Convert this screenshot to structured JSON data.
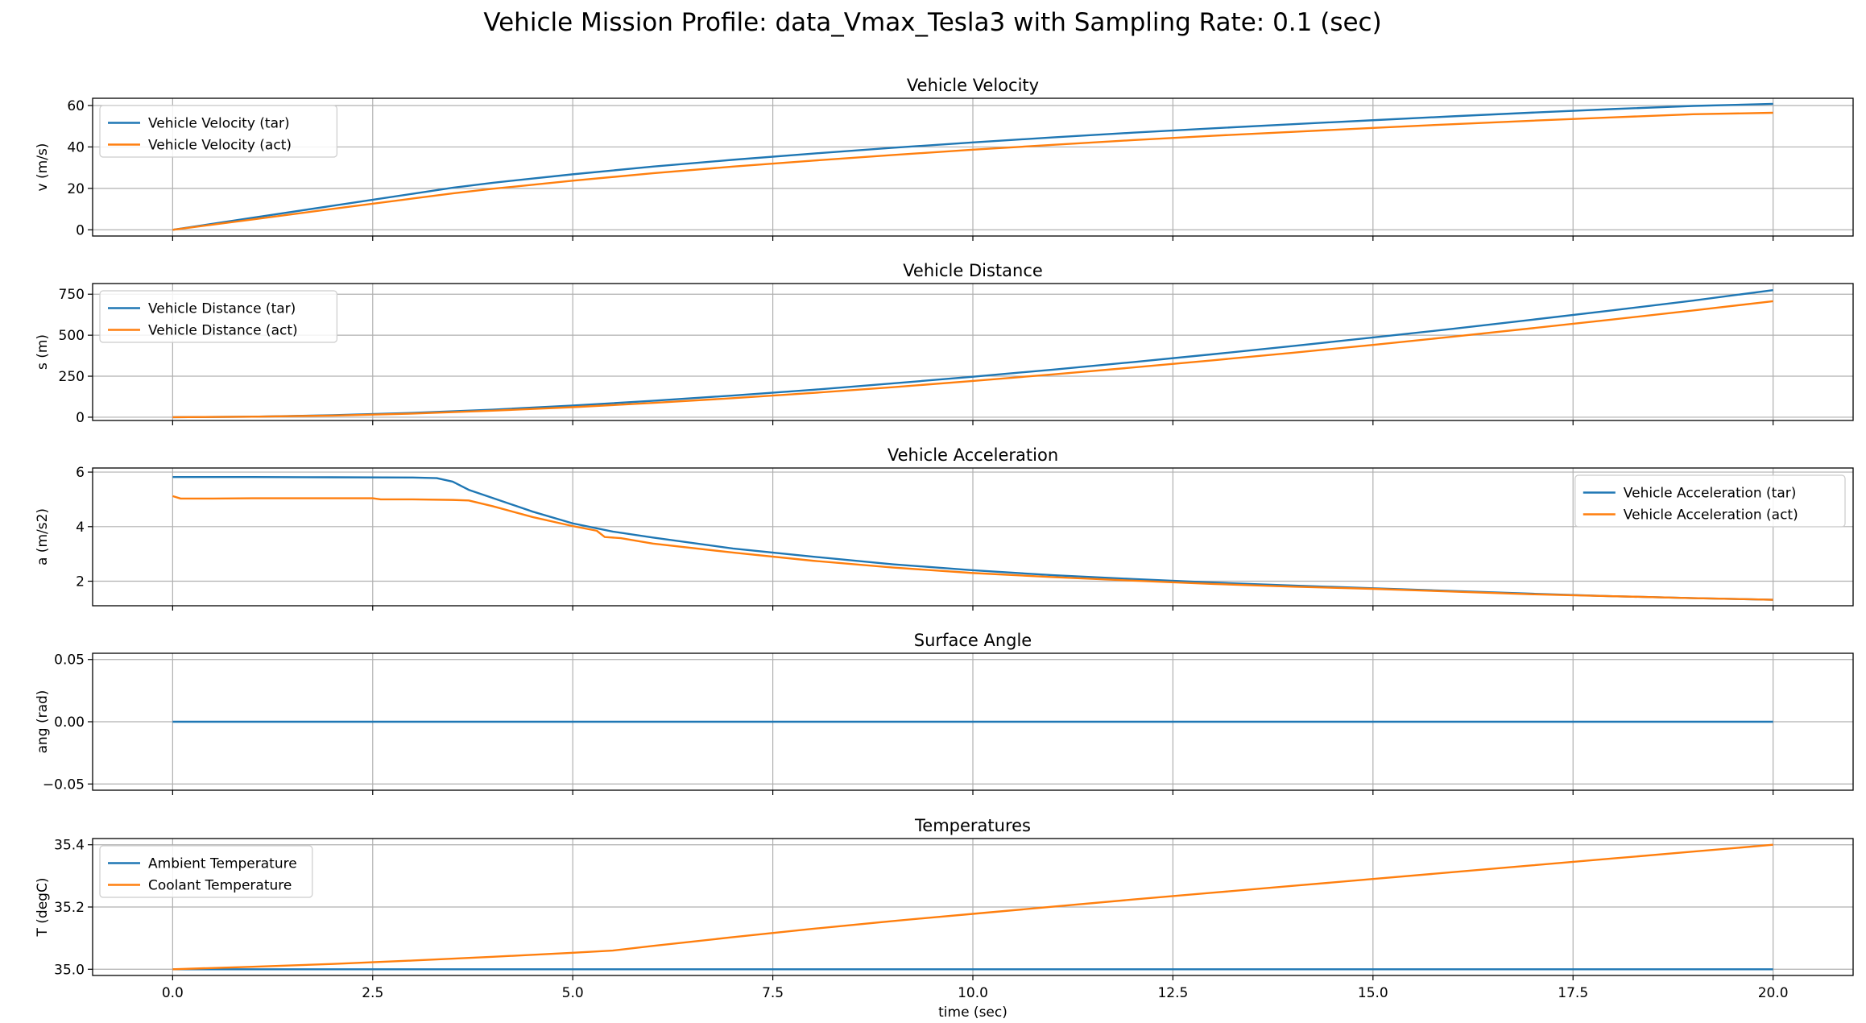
{
  "figure": {
    "title": "Vehicle Mission Profile: data_Vmax_Tesla3 with Sampling Rate: 0.1 (sec)",
    "xlabel": "time (sec)"
  },
  "colors": {
    "tar": "#1f77b4",
    "act": "#ff7f0e",
    "grid": "#b0b0b0"
  },
  "chart_data": [
    {
      "type": "line",
      "title": "Vehicle Velocity",
      "ylabel": "v (m/s)",
      "xlim": [
        -1,
        21
      ],
      "ylim": [
        -3.0,
        63.5
      ],
      "yticks": [
        0,
        20,
        40,
        60
      ],
      "ytick_labels": [
        "0",
        "20",
        "40",
        "60"
      ],
      "legend": "upper-left",
      "series": [
        {
          "name": "Vehicle Velocity (tar)",
          "x": [
            0,
            1,
            2,
            3,
            3.5,
            4,
            5,
            6,
            7,
            8,
            9,
            10,
            11,
            12,
            13,
            14,
            15,
            16,
            17,
            18,
            19,
            20
          ],
          "y": [
            0,
            5.8,
            11.6,
            17.4,
            20.3,
            22.7,
            26.8,
            30.5,
            33.8,
            36.8,
            39.6,
            42.2,
            44.6,
            46.9,
            49.0,
            51.0,
            52.9,
            54.8,
            56.6,
            58.3,
            59.8,
            60.8
          ]
        },
        {
          "name": "Vehicle Velocity (act)",
          "x": [
            0,
            1,
            2,
            3,
            3.5,
            4,
            5,
            6,
            7,
            8,
            9,
            10,
            11,
            12,
            13,
            14,
            15,
            16,
            17,
            18,
            19,
            20
          ],
          "y": [
            0,
            5.0,
            10.1,
            15.1,
            17.6,
            19.8,
            23.7,
            27.3,
            30.5,
            33.4,
            36.1,
            38.7,
            41.0,
            43.3,
            45.4,
            47.3,
            49.2,
            51.0,
            52.7,
            54.3,
            55.8,
            56.5
          ]
        }
      ]
    },
    {
      "type": "line",
      "title": "Vehicle Distance",
      "ylabel": "s (m)",
      "xlim": [
        -1,
        21
      ],
      "ylim": [
        -20,
        815
      ],
      "yticks": [
        0,
        250,
        500,
        750
      ],
      "ytick_labels": [
        "0",
        "250",
        "500",
        "750"
      ],
      "legend": "upper-left",
      "series": [
        {
          "name": "Vehicle Distance (tar)",
          "x": [
            0,
            1,
            2,
            3,
            4,
            5,
            6,
            7,
            8,
            9,
            10,
            11,
            12,
            13,
            14,
            15,
            16,
            17,
            18,
            19,
            20
          ],
          "y": [
            0,
            3,
            12,
            26,
            46,
            71,
            100,
            132,
            167,
            206,
            247,
            290,
            336,
            384,
            434,
            486,
            539,
            595,
            652,
            711,
            775
          ]
        },
        {
          "name": "Vehicle Distance (act)",
          "x": [
            0,
            1,
            2,
            3,
            4,
            5,
            6,
            7,
            8,
            9,
            10,
            11,
            12,
            13,
            14,
            15,
            16,
            17,
            18,
            19,
            20
          ],
          "y": [
            0,
            3,
            10,
            22,
            40,
            61,
            87,
            116,
            148,
            183,
            221,
            261,
            303,
            347,
            393,
            441,
            491,
            543,
            596,
            651,
            707
          ]
        }
      ]
    },
    {
      "type": "line",
      "title": "Vehicle Acceleration",
      "ylabel": "a (m/s2)",
      "xlim": [
        -1,
        21
      ],
      "ylim": [
        1.1,
        6.15
      ],
      "yticks": [
        2,
        4,
        6
      ],
      "ytick_labels": [
        "2",
        "4",
        "6"
      ],
      "legend": "upper-right",
      "series": [
        {
          "name": "Vehicle Acceleration (tar)",
          "x": [
            0,
            1,
            2,
            3,
            3.3,
            3.5,
            3.7,
            4,
            4.5,
            5,
            5.5,
            6,
            7,
            8,
            9,
            10,
            11,
            12,
            13,
            14,
            15,
            16,
            17,
            18,
            19,
            20
          ],
          "y": [
            5.82,
            5.82,
            5.81,
            5.8,
            5.78,
            5.65,
            5.35,
            5.05,
            4.55,
            4.12,
            3.82,
            3.6,
            3.2,
            2.9,
            2.62,
            2.4,
            2.22,
            2.08,
            1.95,
            1.84,
            1.74,
            1.64,
            1.54,
            1.45,
            1.38,
            1.32
          ]
        },
        {
          "name": "Vehicle Acceleration (act)",
          "x": [
            0,
            0.1,
            0.5,
            1,
            2,
            2.5,
            2.6,
            3,
            3.5,
            3.7,
            4,
            4.5,
            5,
            5.3,
            5.4,
            5.6,
            6,
            7,
            8,
            9,
            10,
            11,
            12,
            13,
            14,
            15,
            16,
            17,
            18,
            19,
            20
          ],
          "y": [
            5.12,
            5.03,
            5.03,
            5.04,
            5.04,
            5.04,
            5.0,
            5.0,
            4.98,
            4.96,
            4.75,
            4.35,
            4.02,
            3.85,
            3.62,
            3.58,
            3.38,
            3.05,
            2.75,
            2.5,
            2.3,
            2.15,
            2.02,
            1.9,
            1.8,
            1.72,
            1.62,
            1.52,
            1.45,
            1.38,
            1.32
          ]
        }
      ]
    },
    {
      "type": "line",
      "title": "Surface Angle",
      "ylabel": "ang (rad)",
      "xlim": [
        -1,
        21
      ],
      "ylim": [
        -0.055,
        0.055
      ],
      "yticks": [
        -0.05,
        0.0,
        0.05
      ],
      "ytick_labels": [
        "−0.05",
        "0.00",
        "0.05"
      ],
      "legend": "none",
      "series": [
        {
          "x": [
            0,
            20
          ],
          "y": [
            0,
            0
          ]
        }
      ]
    },
    {
      "type": "line",
      "title": "Temperatures",
      "ylabel": "T (degC)",
      "xlim": [
        -1,
        21
      ],
      "ylim": [
        34.98,
        35.42
      ],
      "yticks": [
        35.0,
        35.2,
        35.4
      ],
      "ytick_labels": [
        "35.0",
        "35.2",
        "35.4"
      ],
      "legend": "upper-left",
      "series": [
        {
          "name": "Ambient Temperature",
          "x": [
            0,
            20
          ],
          "y": [
            35.0,
            35.0
          ]
        },
        {
          "name": "Coolant Temperature",
          "x": [
            0,
            1,
            2,
            3,
            4,
            5,
            5.5,
            6,
            7,
            8,
            9,
            10,
            11,
            12,
            13,
            14,
            15,
            16,
            17,
            18,
            19,
            20
          ],
          "y": [
            35.0,
            35.008,
            35.017,
            35.028,
            35.04,
            35.053,
            35.06,
            35.075,
            35.103,
            35.13,
            35.155,
            35.178,
            35.201,
            35.224,
            35.246,
            35.268,
            35.29,
            35.312,
            35.334,
            35.356,
            35.378,
            35.4
          ]
        }
      ]
    }
  ],
  "x_ticks": [
    0,
    2.5,
    5,
    7.5,
    10,
    12.5,
    15,
    17.5,
    20
  ],
  "x_tick_labels": [
    "0.0",
    "2.5",
    "5.0",
    "7.5",
    "10.0",
    "12.5",
    "15.0",
    "17.5",
    "20.0"
  ]
}
